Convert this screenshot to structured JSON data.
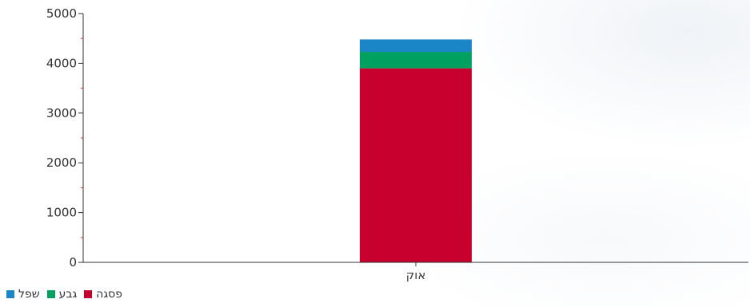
{
  "chart_data": {
    "type": "bar",
    "stacked": true,
    "categories": [
      "אוק"
    ],
    "series": [
      {
        "name": "פסגה",
        "color": "#c8002d",
        "values": [
          3900
        ]
      },
      {
        "name": "גבע",
        "color": "#00a060",
        "values": [
          330
        ]
      },
      {
        "name": "שפל",
        "color": "#1a86c7",
        "values": [
          250
        ]
      }
    ],
    "ylim": [
      0,
      5000
    ],
    "yticks": [
      0,
      1000,
      2000,
      3000,
      4000,
      5000
    ],
    "grid": false,
    "legend_position": "bottom-left"
  }
}
